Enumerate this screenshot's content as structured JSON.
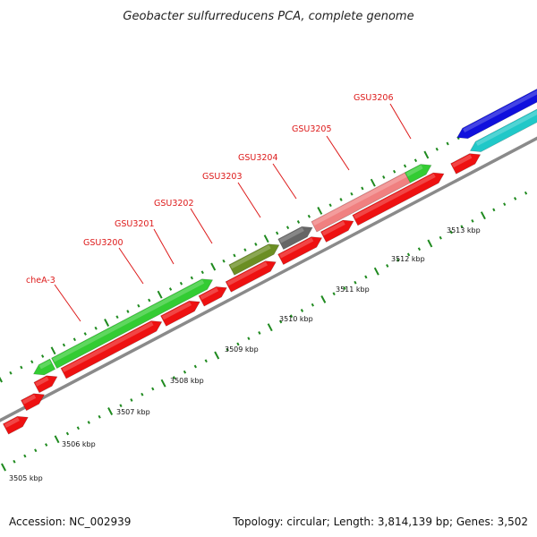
{
  "title": "Geobacter sulfurreducens PCA, complete genome",
  "footer": {
    "accession": "Accession: NC_002939",
    "summary": "Topology: circular; Length: 3,814,139 bp; Genes: 3,502"
  },
  "colors": {
    "backbone": "#8a8a8a",
    "tick": "#1f8a1f",
    "label": "#dd1a1a",
    "cds_red": "#ee1111",
    "green": "#33cc33",
    "olive": "#6b8e23",
    "gray": "#666666",
    "pink": "#f08080",
    "blue": "#1010dd",
    "cyan": "#20c8c8"
  },
  "scale_labels": [
    "3505 kbp",
    "3506 kbp",
    "3507 kbp",
    "3508 kbp",
    "3509 kbp",
    "3510 kbp",
    "3511 kbp",
    "3512 kbp",
    "3513 kbp"
  ],
  "gene_labels": [
    "cheA-3",
    "GSU3200",
    "GSU3201",
    "GSU3202",
    "GSU3203",
    "GSU3204",
    "GSU3205",
    "GSU3206"
  ]
}
